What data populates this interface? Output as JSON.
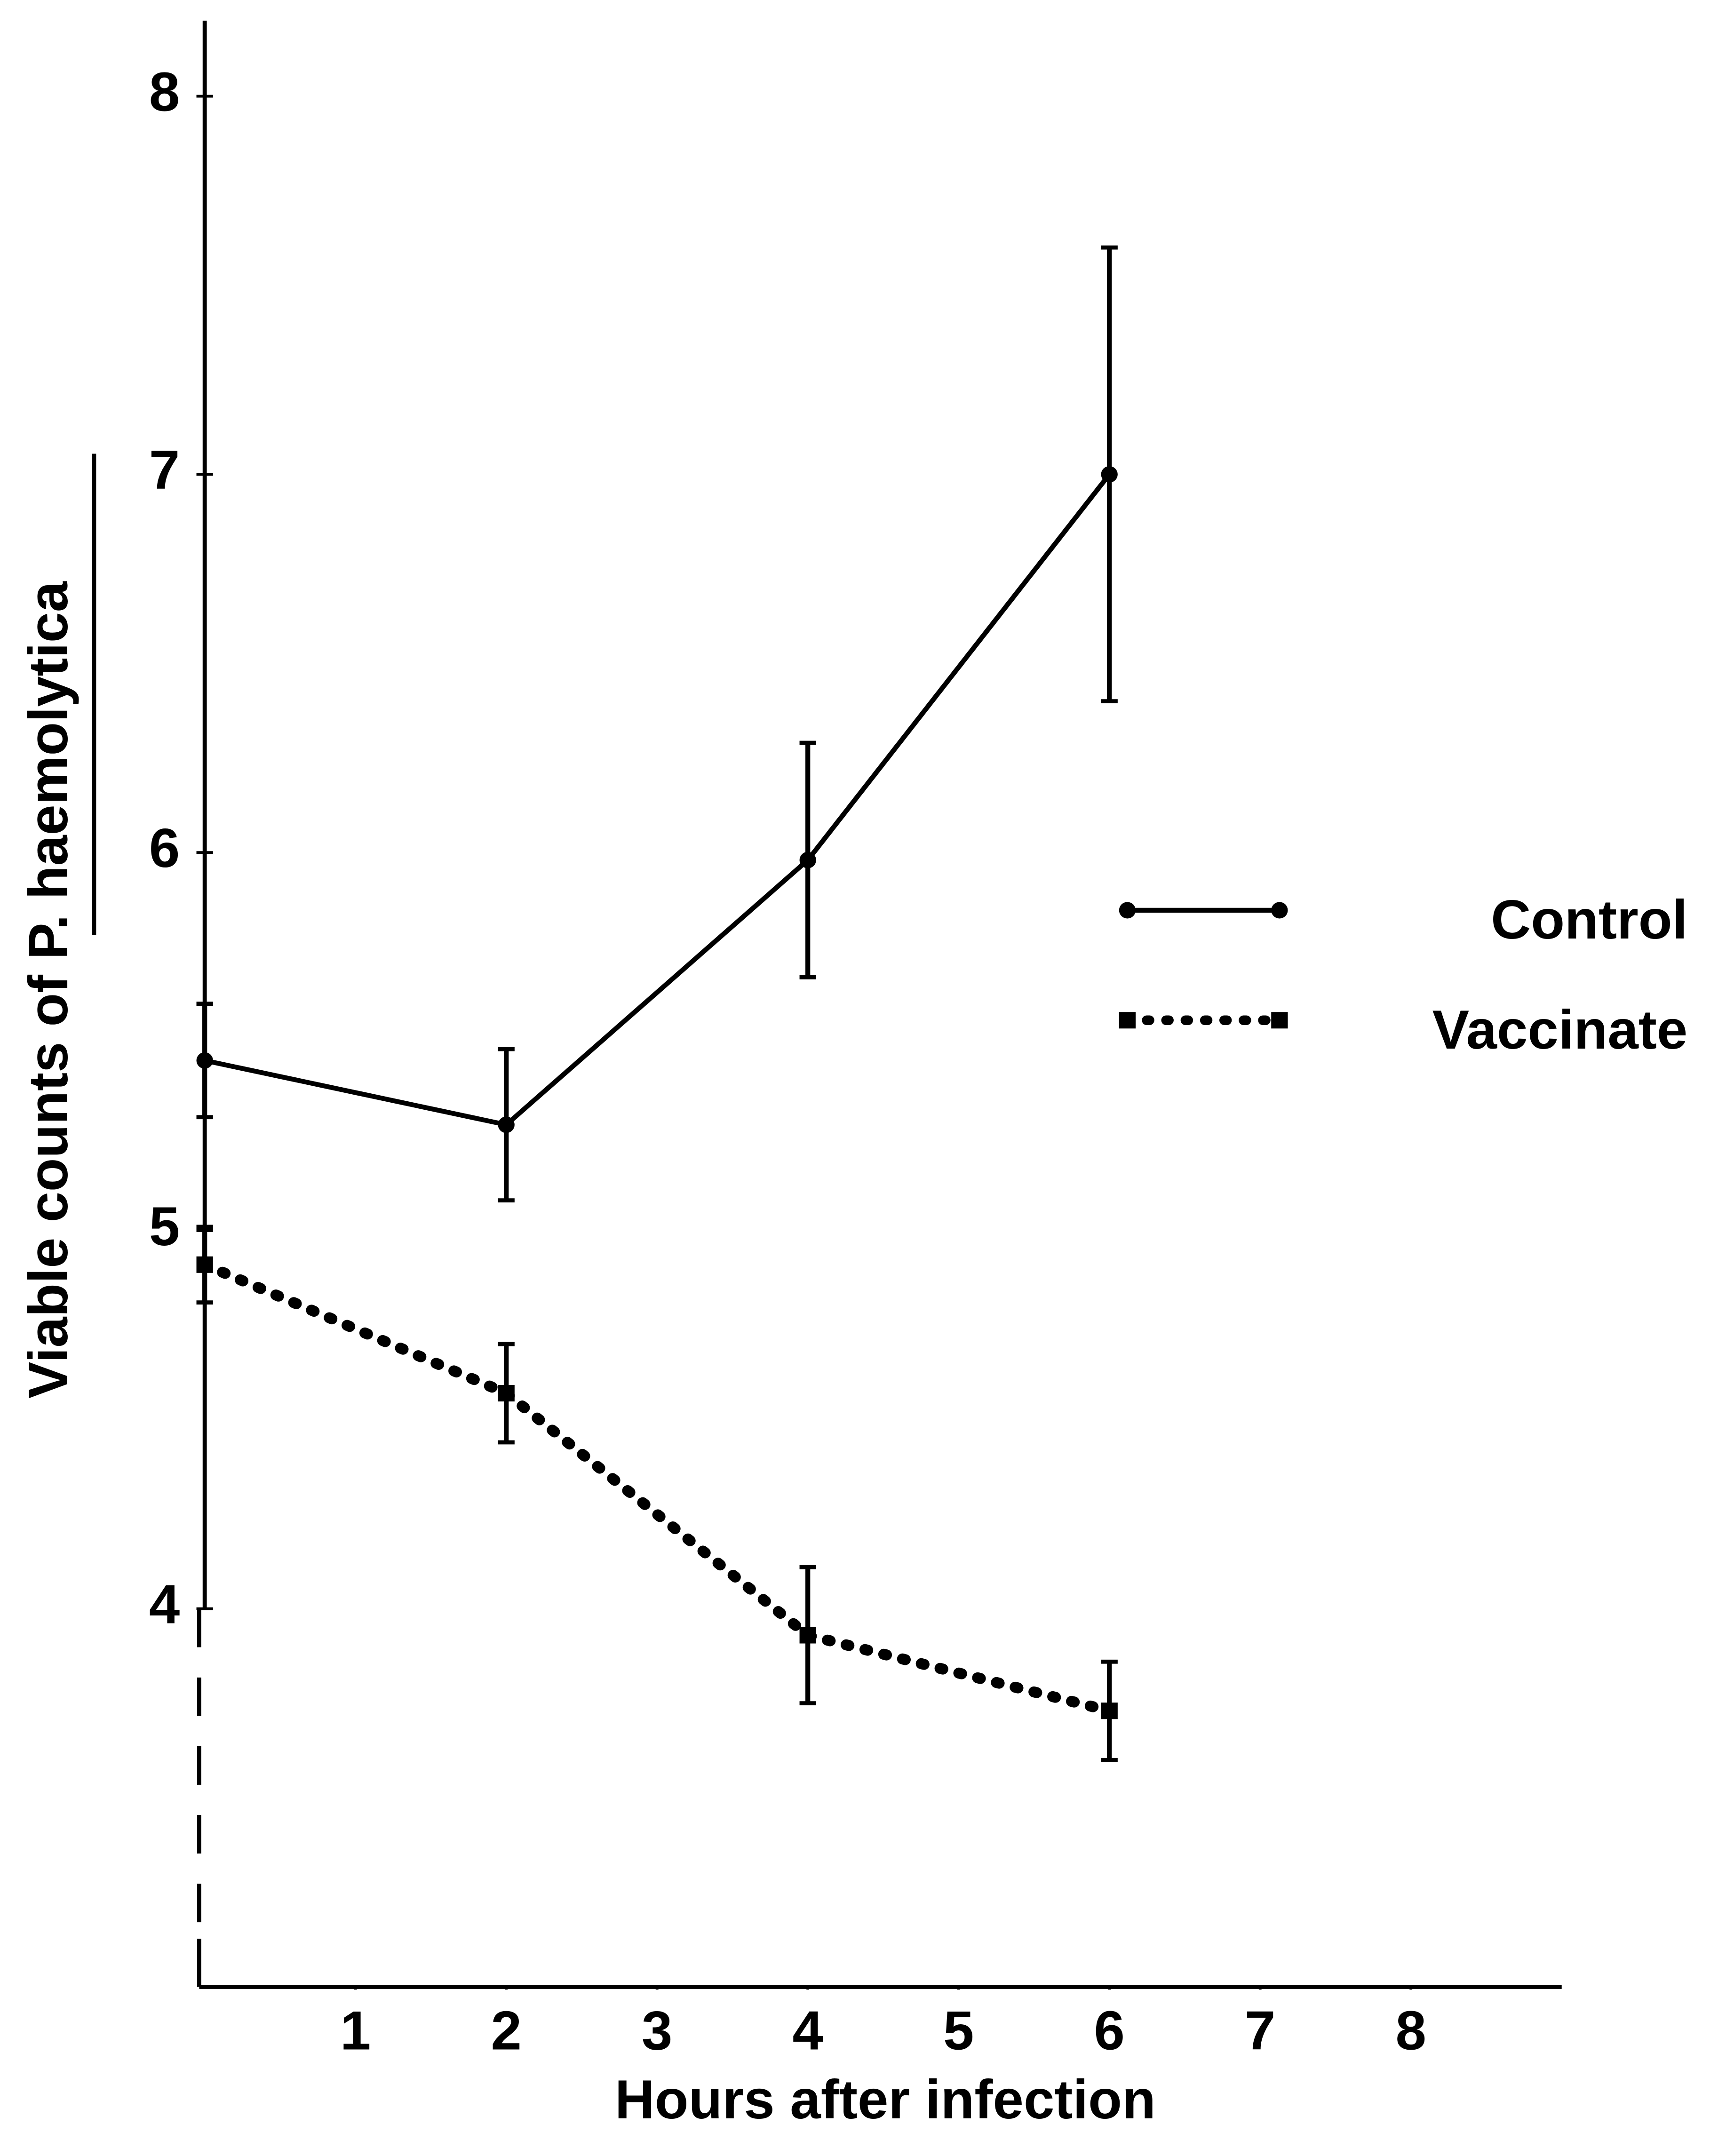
{
  "chart_data": {
    "type": "line",
    "xlabel": "Hours after infection",
    "ylabel": "Viable counts of P. haemolytica",
    "x": [
      0,
      2,
      4,
      6
    ],
    "series": [
      {
        "name": "Control",
        "color": "#000000",
        "style": "solid",
        "marker": "circle",
        "values": [
          5.45,
          5.28,
          5.98,
          7.0
        ],
        "errors": [
          0.15,
          0.2,
          0.31,
          0.6
        ]
      },
      {
        "name": "Vaccinate",
        "color": "#000000",
        "style": "dotted",
        "marker": "square",
        "values": [
          4.91,
          4.57,
          3.93,
          3.73
        ],
        "errors": [
          0.1,
          0.13,
          0.18,
          0.13
        ]
      }
    ],
    "xlim": [
      0,
      9
    ],
    "xticks": [
      1,
      2,
      3,
      4,
      5,
      6,
      7,
      8
    ],
    "ylim": [
      3,
      8.2
    ],
    "yticks": [
      4,
      5,
      6,
      7,
      8
    ],
    "grid": false,
    "legend": "right"
  }
}
